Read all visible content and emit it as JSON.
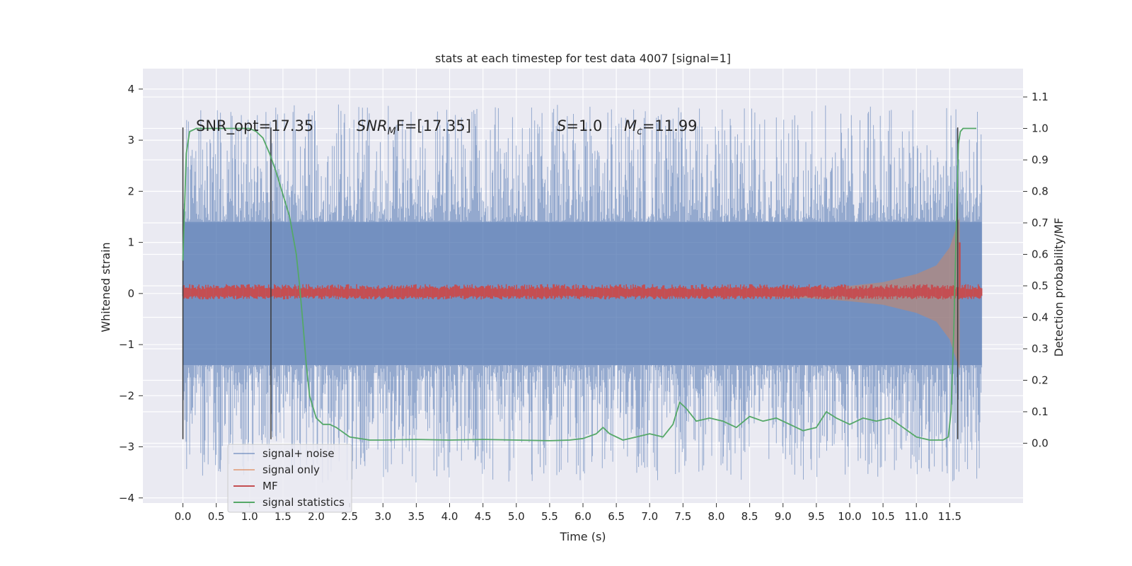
{
  "chart_data": {
    "type": "line",
    "title": "stats at each timestep for test data 4007 [signal=1]",
    "xlabel": "Time (s)",
    "ylabel": "Whitened strain",
    "ylabel_right": "Detection probability/MF",
    "xlim": [
      -0.6,
      12.6
    ],
    "ylim": [
      -4.1,
      4.4
    ],
    "ylim_right": [
      -0.19,
      1.19
    ],
    "x_ticks": [
      "0.0",
      "0.5",
      "1.0",
      "1.5",
      "2.0",
      "2.5",
      "3.0",
      "3.5",
      "4.0",
      "4.5",
      "5.0",
      "5.5",
      "6.0",
      "6.5",
      "7.0",
      "7.5",
      "8.0",
      "8.5",
      "9.0",
      "9.5",
      "10.0",
      "10.5",
      "11.0",
      "11.5"
    ],
    "y_ticks": [
      "4",
      "3",
      "2",
      "1",
      "0",
      "−1",
      "−2",
      "−3",
      "−4"
    ],
    "y_ticks_right": [
      "1.1",
      "1.0",
      "0.9",
      "0.8",
      "0.7",
      "0.6",
      "0.5",
      "0.4",
      "0.3",
      "0.2",
      "0.1",
      "0.0"
    ],
    "grid": true,
    "legend_position": "lower-left",
    "annotations": {
      "snr_opt": "SNR_opt=17.35",
      "snr_mf_name": "SNR",
      "snr_mf_sub": "M",
      "snr_mf_rest": "F=[17.35]",
      "s_name": "S",
      "s_rest": "=1.0",
      "mc_name": "M",
      "mc_sub": "c",
      "mc_rest": "=11.99"
    },
    "vertical_lines": [
      0.0,
      1.32,
      11.62
    ],
    "colors": {
      "signal_noise": "#4c72b0",
      "signal_only": "#dd8452",
      "mf": "#c44e52",
      "statistics": "#55a868",
      "plot_bg": "#eaeaf2",
      "vline": "#3a3a3a"
    },
    "series": [
      {
        "name": "signal+ noise",
        "description_envelope": {
          "x_range": [
            0.0,
            11.98
          ],
          "core_amplitude": 1.4,
          "peak_amplitude": 3.7
        }
      },
      {
        "name": "signal only",
        "envelope_x": [
          7.5,
          8.5,
          9.5,
          10.0,
          10.5,
          11.0,
          11.3,
          11.5,
          11.6,
          11.65
        ],
        "envelope_y": [
          0.02,
          0.05,
          0.1,
          0.15,
          0.22,
          0.38,
          0.55,
          0.9,
          1.3,
          1.5
        ]
      },
      {
        "name": "MF",
        "x_range": [
          0.0,
          11.98
        ],
        "band": 0.09,
        "peak": {
          "x": 11.65,
          "y": 1.0
        }
      },
      {
        "name": "signal statistics",
        "x": [
          0.0,
          0.05,
          0.1,
          0.15,
          0.2,
          0.3,
          0.5,
          0.8,
          1.0,
          1.1,
          1.2,
          1.3,
          1.4,
          1.5,
          1.6,
          1.7,
          1.75,
          1.8,
          1.85,
          1.9,
          2.0,
          2.1,
          2.2,
          2.3,
          2.5,
          2.8,
          3.0,
          3.5,
          4.0,
          4.5,
          5.0,
          5.5,
          5.8,
          6.0,
          6.2,
          6.3,
          6.4,
          6.6,
          6.8,
          7.0,
          7.2,
          7.35,
          7.45,
          7.55,
          7.7,
          7.9,
          8.1,
          8.3,
          8.5,
          8.7,
          8.9,
          9.1,
          9.3,
          9.5,
          9.65,
          9.8,
          10.0,
          10.2,
          10.4,
          10.6,
          10.8,
          11.0,
          11.2,
          11.4,
          11.48,
          11.52,
          11.56,
          11.6,
          11.63,
          11.66,
          11.7,
          11.75,
          11.8,
          11.9
        ],
        "y": [
          0.58,
          0.92,
          0.99,
          0.995,
          1.0,
          1.0,
          1.0,
          1.0,
          1.0,
          0.99,
          0.97,
          0.92,
          0.86,
          0.79,
          0.72,
          0.6,
          0.5,
          0.38,
          0.25,
          0.15,
          0.08,
          0.06,
          0.06,
          0.05,
          0.02,
          0.01,
          0.01,
          0.012,
          0.01,
          0.012,
          0.01,
          0.008,
          0.01,
          0.015,
          0.03,
          0.05,
          0.03,
          0.01,
          0.02,
          0.03,
          0.02,
          0.06,
          0.13,
          0.11,
          0.07,
          0.08,
          0.07,
          0.05,
          0.085,
          0.07,
          0.08,
          0.06,
          0.04,
          0.05,
          0.1,
          0.08,
          0.06,
          0.08,
          0.07,
          0.08,
          0.05,
          0.02,
          0.01,
          0.01,
          0.02,
          0.1,
          0.35,
          0.7,
          0.95,
          0.99,
          1.0,
          1.0,
          1.0,
          1.0
        ]
      }
    ]
  }
}
